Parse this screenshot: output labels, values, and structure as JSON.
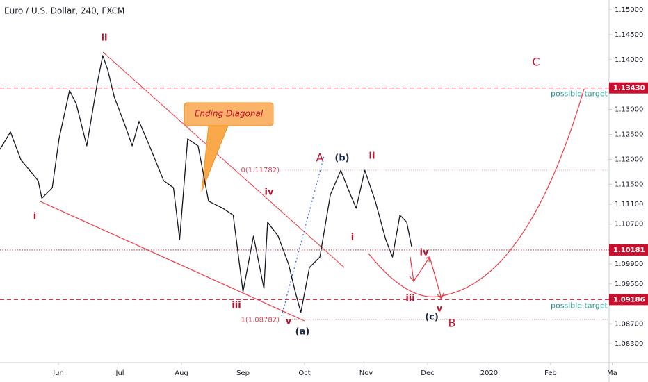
{
  "chart_data": {
    "type": "line",
    "title": "Euro / U.S. Dollar, 240, FXCM",
    "series": [
      {
        "color": "#131722",
        "x": [
          0.05,
          0.22,
          0.39,
          0.67,
          0.73,
          0.9,
          1.01,
          1.18,
          1.29,
          1.46,
          1.63,
          1.72,
          1.8,
          1.91,
          2.08,
          2.2,
          2.31,
          2.48,
          2.71,
          2.87,
          2.97,
          3.1,
          3.27,
          3.44,
          3.67,
          3.84,
          4.0,
          4.17,
          4.34,
          4.4,
          4.57,
          4.74,
          4.85,
          4.94,
          5.08,
          5.25,
          5.42,
          5.59,
          5.7,
          5.84,
          5.98,
          6.15,
          6.32,
          6.43,
          6.55,
          6.66,
          6.74
        ],
        "values": [
          1.122,
          1.1255,
          1.1199,
          1.1157,
          1.1122,
          1.1143,
          1.1241,
          1.1338,
          1.1311,
          1.1227,
          1.1352,
          1.1408,
          1.138,
          1.1324,
          1.1269,
          1.1227,
          1.1276,
          1.1227,
          1.1157,
          1.1143,
          1.1039,
          1.1241,
          1.1227,
          1.1116,
          1.1102,
          1.1088,
          1.0934,
          1.1046,
          1.0941,
          1.1074,
          1.1046,
          1.099,
          1.0934,
          1.0893,
          1.0983,
          1.1004,
          1.1129,
          1.1178,
          1.1143,
          1.1102,
          1.1178,
          1.1116,
          1.1039,
          1.1004,
          1.1088,
          1.1074,
          1.1025
        ]
      }
    ],
    "xlim": [
      0.05,
      9.95
    ],
    "xticks": [
      {
        "value": 1,
        "label": "Jun"
      },
      {
        "value": 2,
        "label": "Jul"
      },
      {
        "value": 3,
        "label": "Aug"
      },
      {
        "value": 4,
        "label": "Sep"
      },
      {
        "value": 5,
        "label": "Oct"
      },
      {
        "value": 6,
        "label": "Nov"
      },
      {
        "value": 7,
        "label": "Dec"
      },
      {
        "value": 8,
        "label": "2020"
      },
      {
        "value": 9,
        "label": "Feb"
      },
      {
        "value": 10,
        "label": "Ma"
      }
    ],
    "ylim": [
      1.0823,
      1.15195
    ],
    "yticks": [
      {
        "value": 1.15,
        "label": "1.15000"
      },
      {
        "value": 1.145,
        "label": "1.14500"
      },
      {
        "value": 1.14,
        "label": "1.14000"
      },
      {
        "value": 1.13,
        "label": "1.13000"
      },
      {
        "value": 1.125,
        "label": "1.12500"
      },
      {
        "value": 1.12,
        "label": "1.12000"
      },
      {
        "value": 1.115,
        "label": "1.11500"
      },
      {
        "value": 1.111,
        "label": "1.11100"
      },
      {
        "value": 1.107,
        "label": "1.10700"
      },
      {
        "value": 1.099,
        "label": "1.09900"
      },
      {
        "value": 1.095,
        "label": "1.09500"
      },
      {
        "value": 1.087,
        "label": "1.08700"
      },
      {
        "value": 1.083,
        "label": "1.08300"
      }
    ],
    "levels": [
      {
        "value": 1.1343,
        "label": "1.13430",
        "text": "possible target",
        "style": "dashed"
      },
      {
        "value": 1.10181,
        "label": "1.10181",
        "style": "dotted"
      },
      {
        "value": 1.09186,
        "label": "1.09186",
        "text": "possible target",
        "style": "dashed"
      }
    ],
    "fib": [
      {
        "value": 1.11782,
        "label": "0(1.11782)"
      },
      {
        "value": 1.08782,
        "label": "1(1.08782)"
      }
    ],
    "callout": "Ending Diagonal",
    "annotations": [
      {
        "text": "ii",
        "color": "#b5122b"
      },
      {
        "text": "i",
        "color": "#b5122b"
      },
      {
        "text": "iii",
        "color": "#b5122b"
      },
      {
        "text": "iv",
        "color": "#b5122b"
      },
      {
        "text": "v",
        "color": "#b5122b"
      },
      {
        "text": "(a)",
        "color": "#1a2747"
      },
      {
        "text": "A",
        "color": "#c8102e"
      },
      {
        "text": "(b)",
        "color": "#1a2747"
      },
      {
        "text": "ii",
        "color": "#b5122b"
      },
      {
        "text": "i",
        "color": "#b5122b"
      },
      {
        "text": "iv",
        "color": "#b5122b"
      },
      {
        "text": "iii",
        "color": "#b5122b"
      },
      {
        "text": "v",
        "color": "#b5122b"
      },
      {
        "text": "(c)",
        "color": "#1a2747"
      },
      {
        "text": "B",
        "color": "#c8102e"
      },
      {
        "text": "C",
        "color": "#c8102e"
      }
    ]
  }
}
